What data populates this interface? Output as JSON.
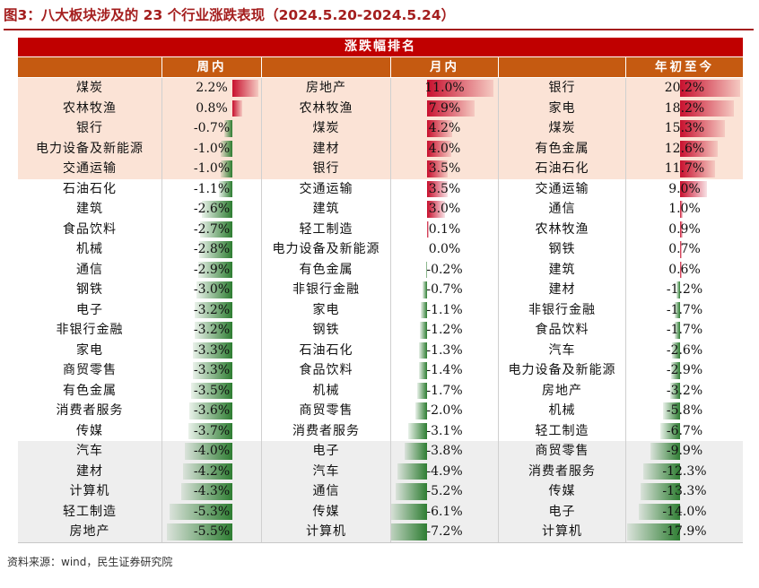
{
  "title": "图3：八大板块涉及的 23 个行业涨跌表现（2024.5.20-2024.5.24）",
  "source": "资料来源：wind，民生证券研究院",
  "colors": {
    "positive": "#c8102e",
    "negative": "#2e7d32",
    "header_red": "#c00000",
    "header_orange": "#c55a11",
    "top_band": "#fbe3d6",
    "bottom_band": "#eeeeee"
  },
  "chart_data": {
    "type": "table",
    "title": "涨跌幅排名",
    "unit": "%",
    "columns": [
      {
        "header": "周内",
        "rows": [
          {
            "name": "煤炭",
            "value": 2.2
          },
          {
            "name": "农林牧渔",
            "value": 0.8
          },
          {
            "name": "银行",
            "value": -0.7
          },
          {
            "name": "电力设备及新能源",
            "value": -1.0
          },
          {
            "name": "交通运输",
            "value": -1.0
          },
          {
            "name": "石油石化",
            "value": -1.1
          },
          {
            "name": "建筑",
            "value": -2.6
          },
          {
            "name": "食品饮料",
            "value": -2.7
          },
          {
            "name": "机械",
            "value": -2.8
          },
          {
            "name": "通信",
            "value": -2.9
          },
          {
            "name": "钢铁",
            "value": -3.0
          },
          {
            "name": "电子",
            "value": -3.2
          },
          {
            "name": "非银行金融",
            "value": -3.2
          },
          {
            "name": "家电",
            "value": -3.3
          },
          {
            "name": "商贸零售",
            "value": -3.3
          },
          {
            "name": "有色金属",
            "value": -3.5
          },
          {
            "name": "消费者服务",
            "value": -3.6
          },
          {
            "name": "传媒",
            "value": -3.7
          },
          {
            "name": "汽车",
            "value": -4.0
          },
          {
            "name": "建材",
            "value": -4.2
          },
          {
            "name": "计算机",
            "value": -4.3
          },
          {
            "name": "轻工制造",
            "value": -5.3
          },
          {
            "name": "房地产",
            "value": -5.5
          }
        ]
      },
      {
        "header": "月内",
        "rows": [
          {
            "name": "房地产",
            "value": 11.0
          },
          {
            "name": "农林牧渔",
            "value": 7.9
          },
          {
            "name": "煤炭",
            "value": 4.2
          },
          {
            "name": "建材",
            "value": 4.0
          },
          {
            "name": "银行",
            "value": 3.5
          },
          {
            "name": "交通运输",
            "value": 3.5
          },
          {
            "name": "建筑",
            "value": 3.0
          },
          {
            "name": "轻工制造",
            "value": 0.1
          },
          {
            "name": "电力设备及新能源",
            "value": 0.0
          },
          {
            "name": "有色金属",
            "value": -0.2
          },
          {
            "name": "非银行金融",
            "value": -0.7
          },
          {
            "name": "家电",
            "value": -1.1
          },
          {
            "name": "钢铁",
            "value": -1.2
          },
          {
            "name": "石油石化",
            "value": -1.3
          },
          {
            "name": "食品饮料",
            "value": -1.4
          },
          {
            "name": "机械",
            "value": -1.7
          },
          {
            "name": "商贸零售",
            "value": -2.0
          },
          {
            "name": "消费者服务",
            "value": -3.1
          },
          {
            "name": "电子",
            "value": -3.8
          },
          {
            "name": "汽车",
            "value": -4.9
          },
          {
            "name": "通信",
            "value": -5.2
          },
          {
            "name": "传媒",
            "value": -6.1
          },
          {
            "name": "计算机",
            "value": -7.2
          }
        ]
      },
      {
        "header": "年初至今",
        "rows": [
          {
            "name": "银行",
            "value": 20.2
          },
          {
            "name": "家电",
            "value": 18.2
          },
          {
            "name": "煤炭",
            "value": 15.3
          },
          {
            "name": "有色金属",
            "value": 12.6
          },
          {
            "name": "石油石化",
            "value": 11.7
          },
          {
            "name": "交通运输",
            "value": 9.0
          },
          {
            "name": "通信",
            "value": 1.0
          },
          {
            "name": "农林牧渔",
            "value": 0.9
          },
          {
            "name": "钢铁",
            "value": 0.7
          },
          {
            "name": "建筑",
            "value": 0.6
          },
          {
            "name": "建材",
            "value": -1.2
          },
          {
            "name": "非银行金融",
            "value": -1.7
          },
          {
            "name": "食品饮料",
            "value": -1.7
          },
          {
            "name": "汽车",
            "value": -2.6
          },
          {
            "name": "电力设备及新能源",
            "value": -2.9
          },
          {
            "name": "房地产",
            "value": -3.2
          },
          {
            "name": "机械",
            "value": -5.8
          },
          {
            "name": "轻工制造",
            "value": -6.7
          },
          {
            "name": "商贸零售",
            "value": -9.9
          },
          {
            "name": "消费者服务",
            "value": -12.3
          },
          {
            "name": "传媒",
            "value": -13.3
          },
          {
            "name": "电子",
            "value": -14.0
          },
          {
            "name": "计算机",
            "value": -17.9
          }
        ]
      }
    ]
  }
}
